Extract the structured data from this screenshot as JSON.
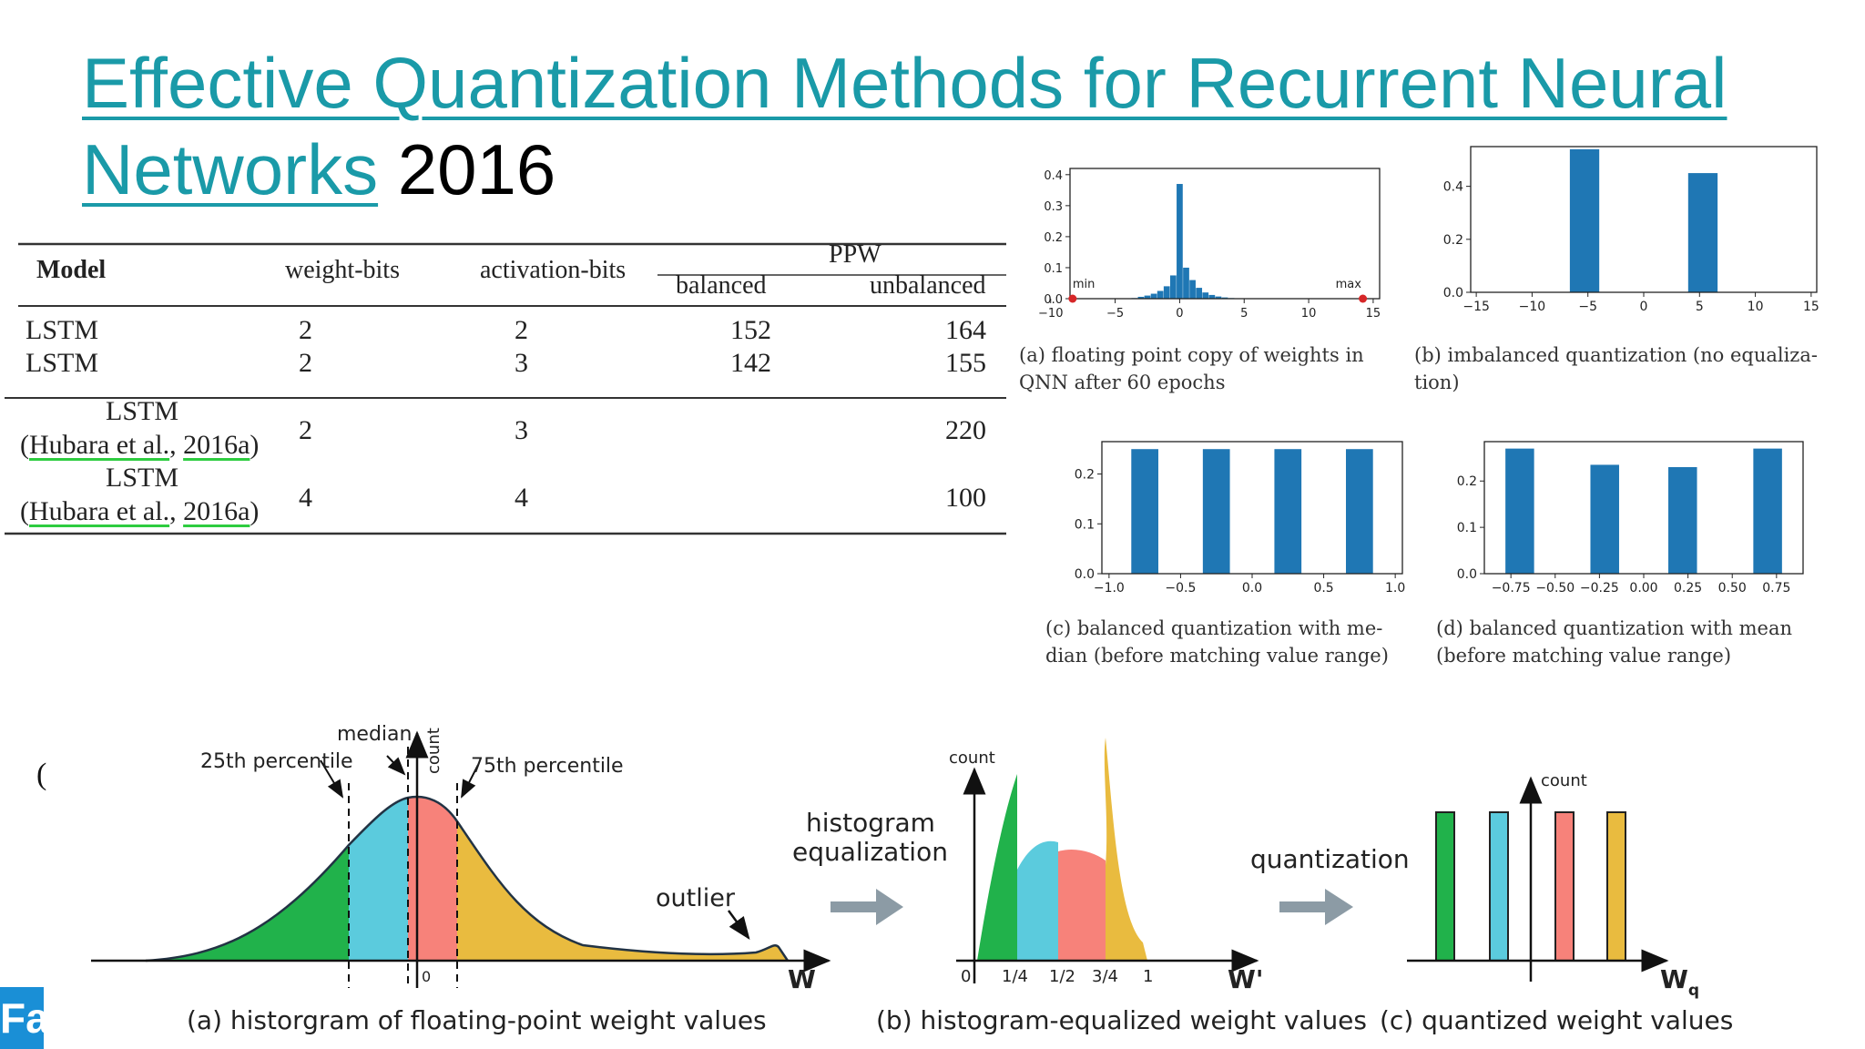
{
  "title": {
    "link_text_1": "Effective Quantization Methods for Recurrent Neural",
    "link_text_2": "Networks",
    "year": "2016"
  },
  "table": {
    "headers": {
      "model": "Model",
      "weight_bits": "weight-bits",
      "activation_bits": "activation-bits",
      "ppw": "PPW",
      "balanced": "balanced",
      "unbalanced": "unbalanced"
    },
    "rows": [
      {
        "model": "LSTM",
        "w": "2",
        "a": "2",
        "balanced": "152",
        "unbalanced": "164"
      },
      {
        "model": "LSTM",
        "w": "2",
        "a": "3",
        "balanced": "142",
        "unbalanced": "155"
      },
      {
        "model": "LSTM",
        "cite_open": "(",
        "cite_author": "Hubara et al.",
        "cite_sep": ", ",
        "cite_year": "2016a",
        "cite_close": ")",
        "w": "2",
        "a": "3",
        "balanced": "",
        "unbalanced": "220"
      },
      {
        "model": "LSTM",
        "cite_open": "(",
        "cite_author": "Hubara et al.",
        "cite_sep": ", ",
        "cite_year": "2016a",
        "cite_close": ")",
        "w": "4",
        "a": "4",
        "balanced": "",
        "unbalanced": "100"
      }
    ]
  },
  "captions": {
    "a_line1": "(a) floating point copy of weights in",
    "a_line2": "QNN after 60 epochs",
    "b_line1": "(b) imbalanced quantization (no equaliza-",
    "b_line2": "tion)",
    "c_line1": "(c) balanced quantization with me-",
    "c_line2": "dian (before matching value range)",
    "d_line1": "(d) balanced quantization with mean",
    "d_line2": "(before matching value range)"
  },
  "chart_data": [
    {
      "type": "bar",
      "id": "a",
      "x_ticks": [
        "−10",
        "−5",
        "0",
        "5",
        "10",
        "15"
      ],
      "y_ticks": [
        "0.0",
        "0.1",
        "0.2",
        "0.3",
        "0.4"
      ],
      "ylim": [
        0,
        0.42
      ],
      "xlim": [
        -8.5,
        15.5
      ],
      "annotations": [
        "min",
        "max"
      ],
      "min_value": -8.3,
      "max_value": 14.2,
      "bins_x": [
        -3.5,
        -3,
        -2.5,
        -2,
        -1.5,
        -1,
        -0.5,
        0,
        0.5,
        1,
        1.5,
        2,
        2.5,
        3,
        3.5,
        4
      ],
      "bins_y": [
        0.002,
        0.006,
        0.01,
        0.016,
        0.025,
        0.04,
        0.075,
        0.37,
        0.1,
        0.06,
        0.035,
        0.02,
        0.012,
        0.007,
        0.004,
        0.002
      ],
      "color": "#1f77b4"
    },
    {
      "type": "bar",
      "id": "b",
      "x_ticks": [
        "−15",
        "−10",
        "−5",
        "0",
        "5",
        "10",
        "15"
      ],
      "y_ticks": [
        "0.0",
        "0.2",
        "0.4"
      ],
      "ylim": [
        0,
        0.55
      ],
      "xlim": [
        -15.5,
        15.5
      ],
      "x": [
        -5.3,
        5.3
      ],
      "values": [
        0.54,
        0.45
      ],
      "color": "#1f77b4"
    },
    {
      "type": "bar",
      "id": "c",
      "x_ticks": [
        "−1.0",
        "−0.5",
        "0.0",
        "0.5",
        "1.0"
      ],
      "y_ticks": [
        "0.0",
        "0.1",
        "0.2"
      ],
      "ylim": [
        0,
        0.265
      ],
      "xlim": [
        -1.05,
        1.05
      ],
      "x": [
        -0.75,
        -0.25,
        0.25,
        0.75
      ],
      "values": [
        0.25,
        0.25,
        0.25,
        0.25
      ],
      "color": "#1f77b4"
    },
    {
      "type": "bar",
      "id": "d",
      "x_ticks": [
        "−0.75",
        "−0.50",
        "−0.25",
        "0.00",
        "0.25",
        "0.50",
        "0.75"
      ],
      "y_ticks": [
        "0.0",
        "0.1",
        "0.2"
      ],
      "ylim": [
        0,
        0.285
      ],
      "xlim": [
        -0.9,
        0.9
      ],
      "x": [
        -0.7,
        -0.22,
        0.22,
        0.7
      ],
      "values": [
        0.27,
        0.235,
        0.23,
        0.27
      ],
      "color": "#1f77b4"
    }
  ],
  "diagram": {
    "fig_a": {
      "label_25": "25th percentile",
      "label_median": "median",
      "label_count": "count",
      "label_75": "75th percentile",
      "label_outlier": "outlier",
      "axis": "W",
      "zero": "0",
      "caption": "(a) historgram of floating-point weight values"
    },
    "arrow1": {
      "line1": "histogram",
      "line2": "equalization"
    },
    "fig_b": {
      "label_count": "count",
      "axis": "W'",
      "ticks": [
        "0",
        "1/4",
        "1/2",
        "3/4",
        "1"
      ],
      "caption": "(b) histogram-equalized weight values"
    },
    "arrow2": {
      "label": "quantization"
    },
    "fig_c": {
      "label_count": "count",
      "axis": "W",
      "axis_sub": "q",
      "caption": "(c) quantized weight values"
    },
    "colors": {
      "green": "#21b24b",
      "cyan": "#5bcbdd",
      "salmon": "#f7827a",
      "yellow": "#e9bb3f",
      "arrow": "#8c9ba5"
    }
  },
  "stray_glyph": "(",
  "logo": {
    "text": "Fa"
  }
}
